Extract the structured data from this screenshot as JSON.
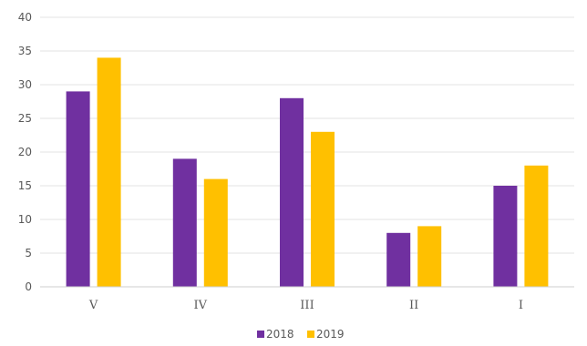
{
  "chart_data": {
    "type": "bar",
    "categories": [
      "V",
      "IV",
      "III",
      "II",
      "I"
    ],
    "series": [
      {
        "name": "2018",
        "values": [
          29,
          19,
          28,
          8,
          15
        ],
        "color": "#7030a0"
      },
      {
        "name": "2019",
        "values": [
          34,
          16,
          23,
          9,
          18
        ],
        "color": "#ffc000"
      }
    ],
    "ylim": [
      0,
      40
    ],
    "yticks": [
      0,
      5,
      10,
      15,
      20,
      25,
      30,
      35,
      40
    ],
    "grid": true,
    "legend": "bottom-center"
  }
}
